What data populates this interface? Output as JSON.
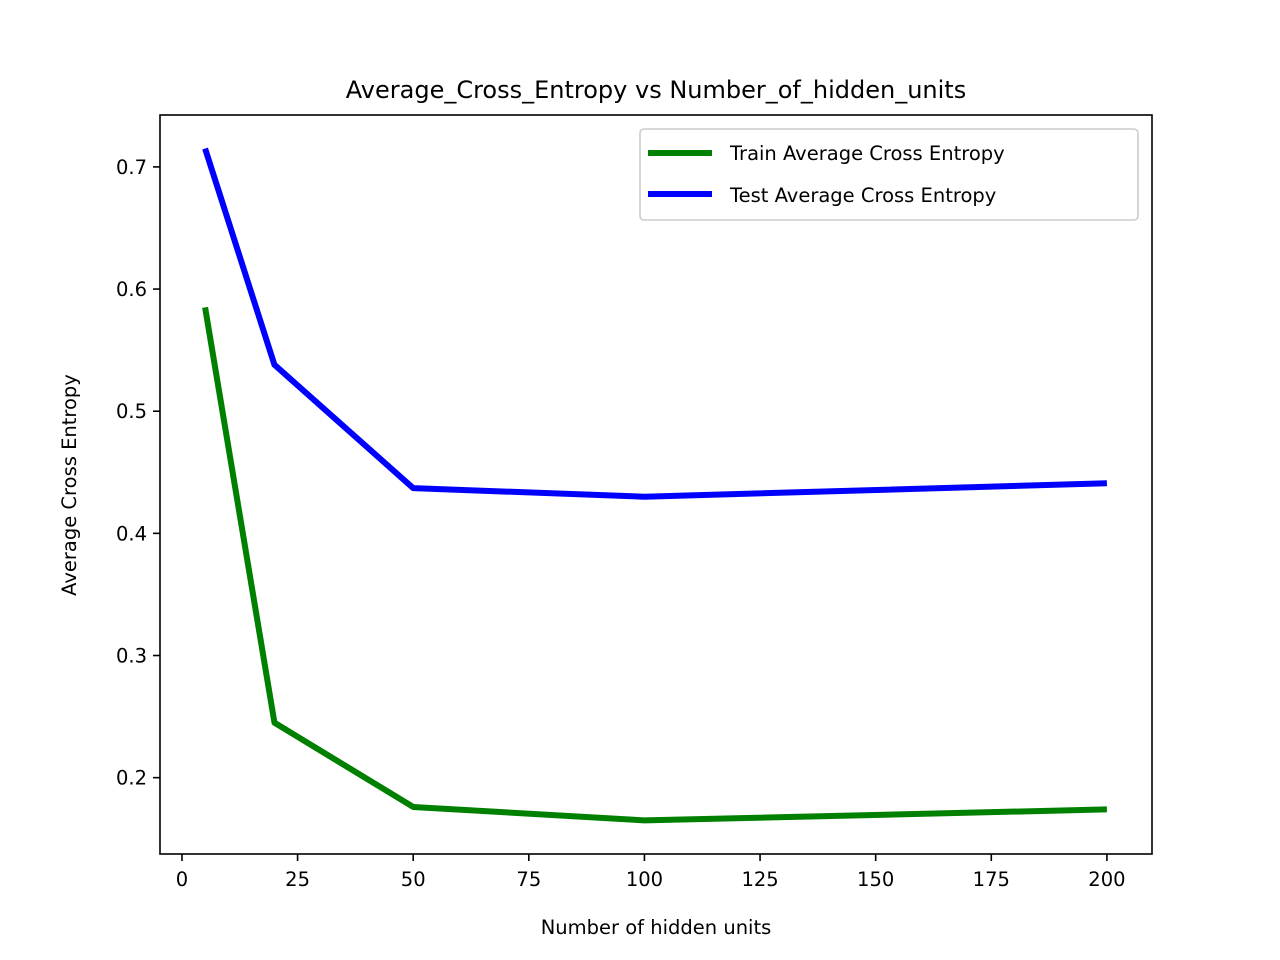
{
  "chart_data": {
    "type": "line",
    "title": "Average_Cross_Entropy vs Number_of_hidden_units",
    "xlabel": "Number of hidden units",
    "ylabel": "Average Cross Entropy",
    "x": [
      5,
      20,
      50,
      100,
      200
    ],
    "series": [
      {
        "name": "Train Average Cross Entropy",
        "values": [
          0.585,
          0.245,
          0.176,
          0.165,
          0.174
        ],
        "color": "#008000"
      },
      {
        "name": "Test Average Cross Entropy",
        "values": [
          0.715,
          0.538,
          0.437,
          0.43,
          0.441
        ],
        "color": "#0000ff"
      }
    ],
    "xlim": [
      -4.75,
      209.75
    ],
    "ylim": [
      0.1375,
      0.7425
    ],
    "xticks": [
      0,
      25,
      50,
      75,
      100,
      125,
      150,
      175,
      200
    ],
    "yticks": [
      0.2,
      0.3,
      0.4,
      0.5,
      0.6,
      0.7
    ],
    "xtick_labels": [
      "0",
      "25",
      "50",
      "75",
      "100",
      "125",
      "150",
      "175",
      "200"
    ],
    "ytick_labels": [
      "0.2",
      "0.3",
      "0.4",
      "0.5",
      "0.6",
      "0.7"
    ],
    "grid": false,
    "legend_position": "top-right"
  }
}
